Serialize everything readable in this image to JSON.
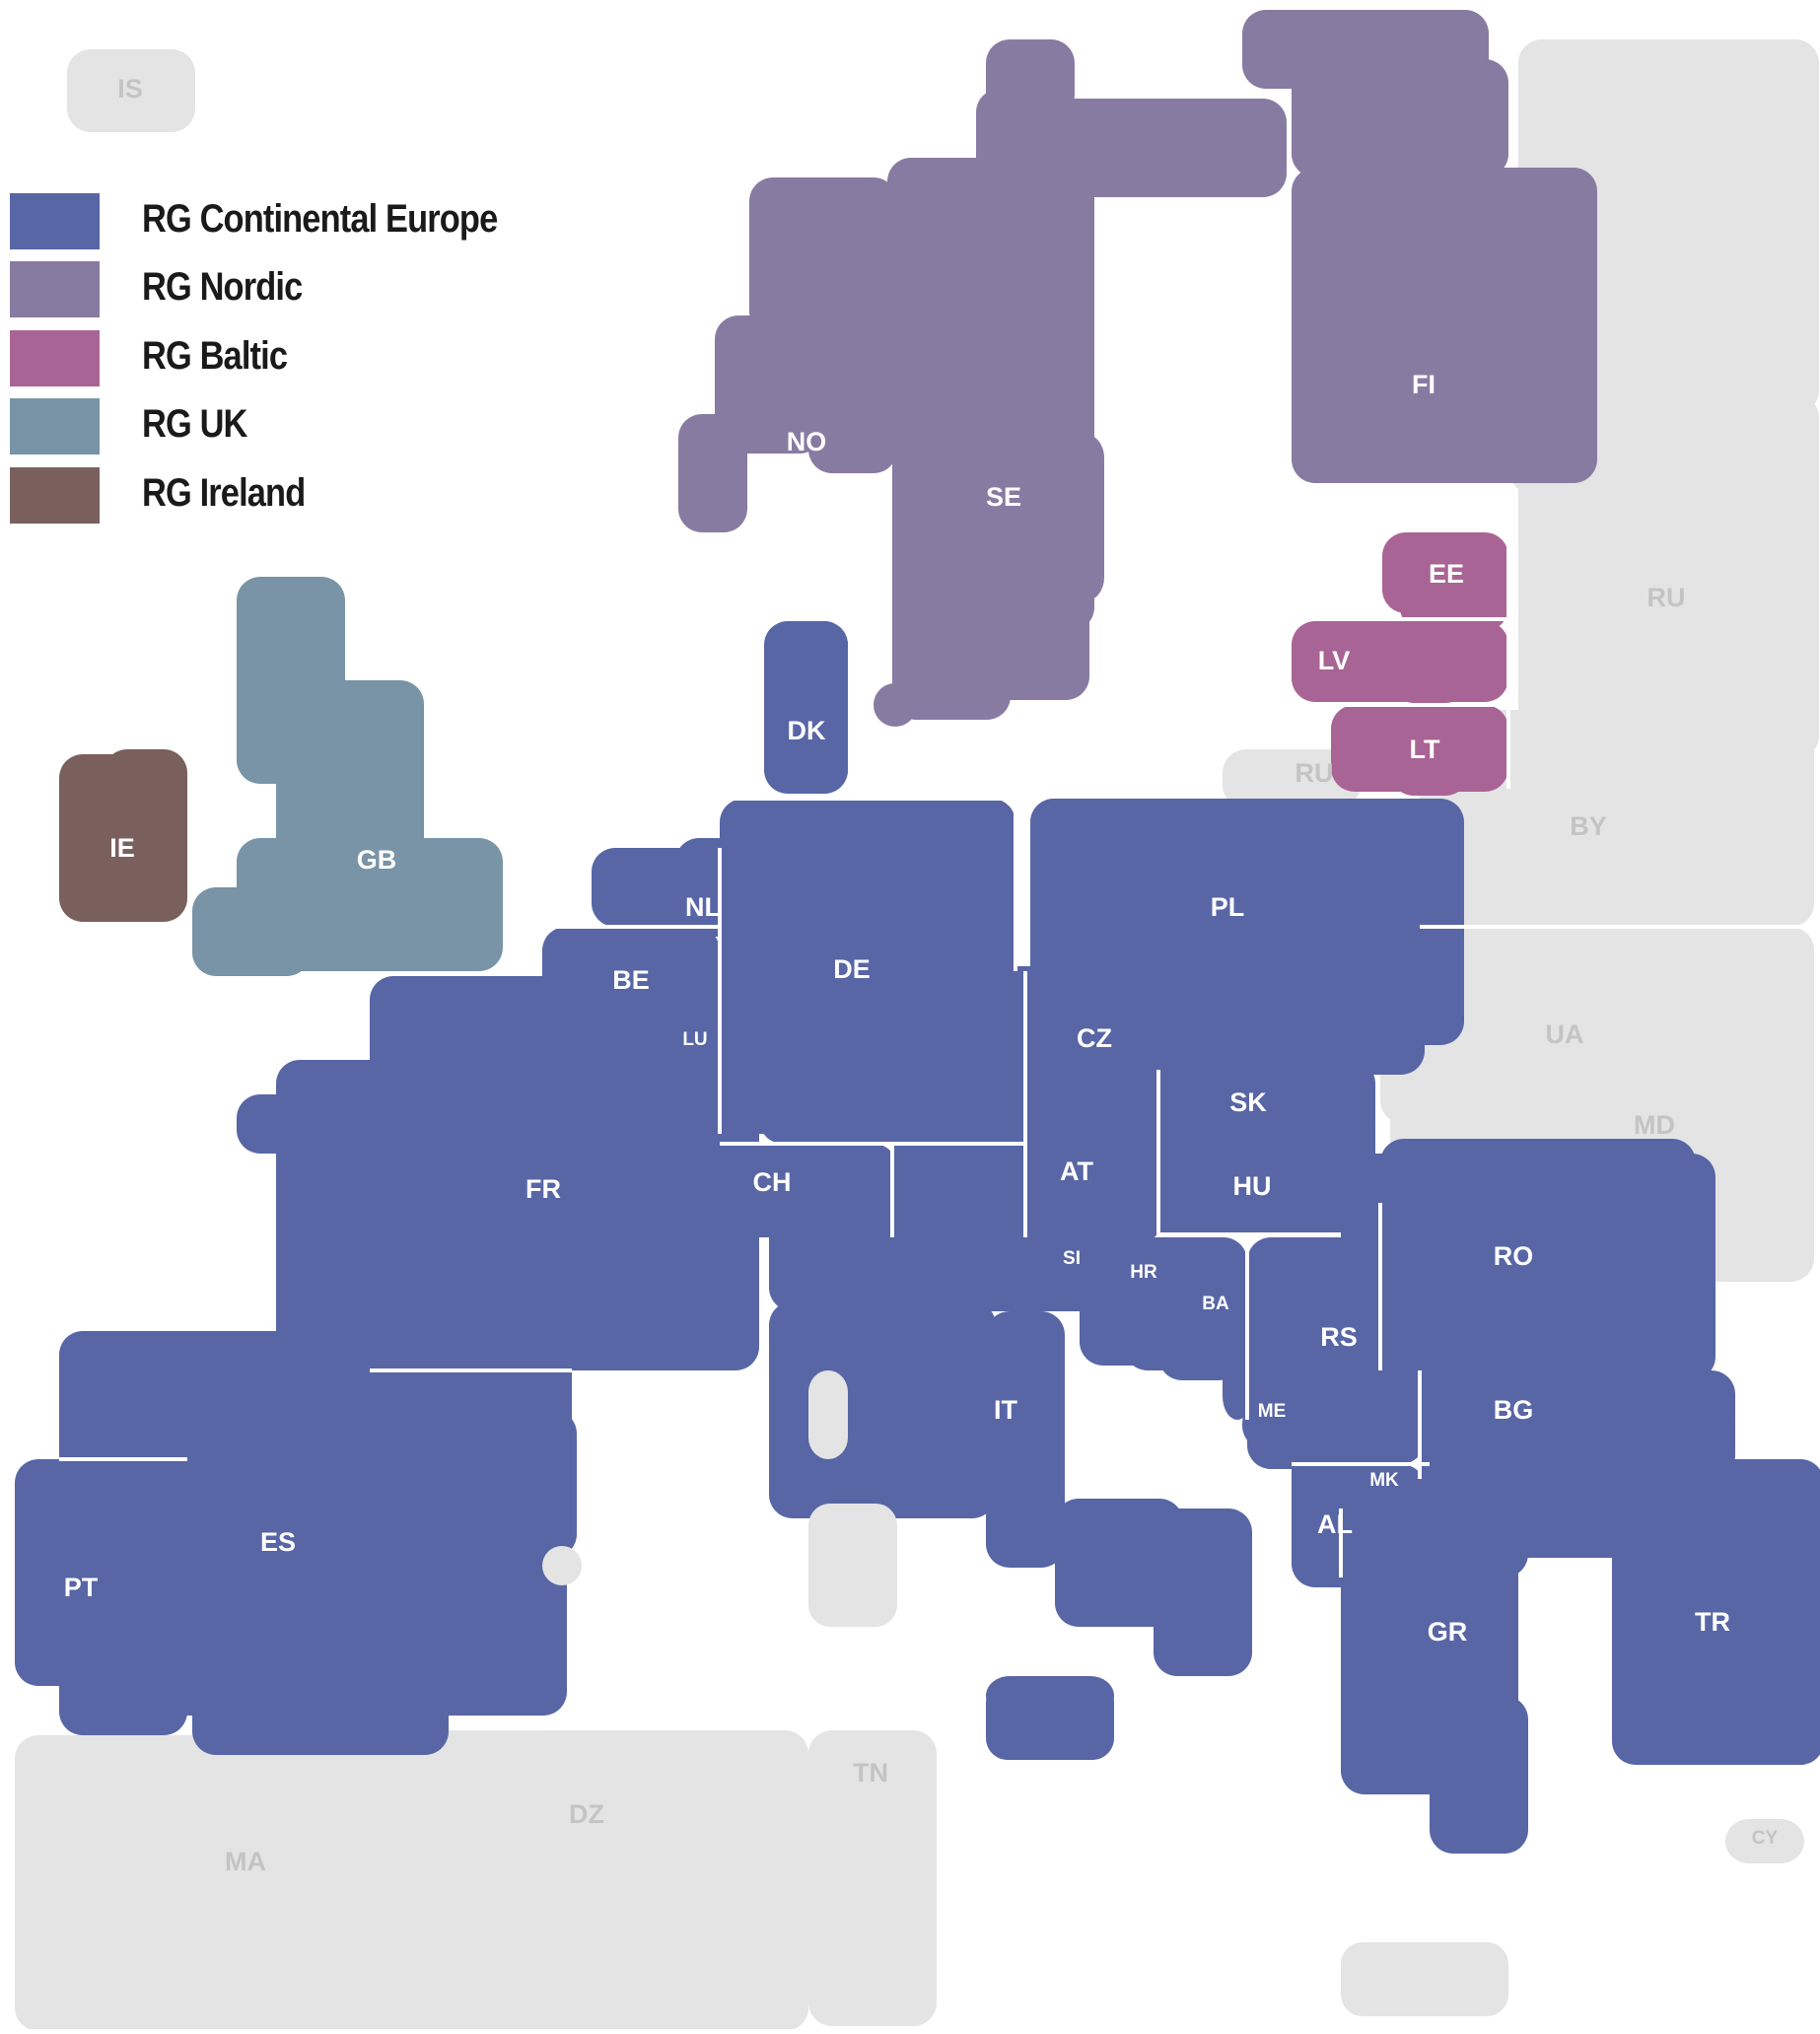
{
  "colors": {
    "continental_europe": "#5866a6",
    "nordic": "#887ba2",
    "baltic": "#a96496",
    "uk": "#7894a6",
    "ireland": "#7a605d",
    "non_member": "#e4e4e4",
    "border": "#ffffff",
    "label_member": "#ffffff",
    "label_non_member": "#c4c4c4"
  },
  "legend": [
    {
      "label": "RG Continental Europe",
      "color": "#5866a6"
    },
    {
      "label": "RG Nordic",
      "color": "#887ba2"
    },
    {
      "label": "RG Baltic",
      "color": "#a96496"
    },
    {
      "label": "RG UK",
      "color": "#7894a6"
    },
    {
      "label": "RG Ireland",
      "color": "#7a605d"
    }
  ],
  "countries": [
    {
      "code": "IS",
      "group": "none"
    },
    {
      "code": "NO",
      "group": "nordic"
    },
    {
      "code": "SE",
      "group": "nordic"
    },
    {
      "code": "FI",
      "group": "nordic"
    },
    {
      "code": "EE",
      "group": "baltic"
    },
    {
      "code": "LV",
      "group": "baltic"
    },
    {
      "code": "LT",
      "group": "baltic"
    },
    {
      "code": "GB",
      "group": "uk"
    },
    {
      "code": "IE",
      "group": "ireland"
    },
    {
      "code": "DK",
      "group": "continental"
    },
    {
      "code": "NL",
      "group": "continental"
    },
    {
      "code": "BE",
      "group": "continental"
    },
    {
      "code": "LU",
      "group": "continental"
    },
    {
      "code": "DE",
      "group": "continental"
    },
    {
      "code": "PL",
      "group": "continental"
    },
    {
      "code": "CZ",
      "group": "continental"
    },
    {
      "code": "SK",
      "group": "continental"
    },
    {
      "code": "AT",
      "group": "continental"
    },
    {
      "code": "HU",
      "group": "continental"
    },
    {
      "code": "CH",
      "group": "continental"
    },
    {
      "code": "FR",
      "group": "continental"
    },
    {
      "code": "ES",
      "group": "continental"
    },
    {
      "code": "PT",
      "group": "continental"
    },
    {
      "code": "IT",
      "group": "continental"
    },
    {
      "code": "SI",
      "group": "continental"
    },
    {
      "code": "HR",
      "group": "continental"
    },
    {
      "code": "BA",
      "group": "continental"
    },
    {
      "code": "RS",
      "group": "continental"
    },
    {
      "code": "ME",
      "group": "continental"
    },
    {
      "code": "MK",
      "group": "continental"
    },
    {
      "code": "AL",
      "group": "continental"
    },
    {
      "code": "GR",
      "group": "continental"
    },
    {
      "code": "BG",
      "group": "continental"
    },
    {
      "code": "RO",
      "group": "continental"
    },
    {
      "code": "TR",
      "group": "continental"
    },
    {
      "code": "RU",
      "group": "none"
    },
    {
      "code": "RU",
      "group": "none"
    },
    {
      "code": "BY",
      "group": "none"
    },
    {
      "code": "UA",
      "group": "none"
    },
    {
      "code": "MD",
      "group": "none"
    },
    {
      "code": "MA",
      "group": "none"
    },
    {
      "code": "DZ",
      "group": "none"
    },
    {
      "code": "TN",
      "group": "none"
    },
    {
      "code": "CY",
      "group": "none"
    }
  ]
}
